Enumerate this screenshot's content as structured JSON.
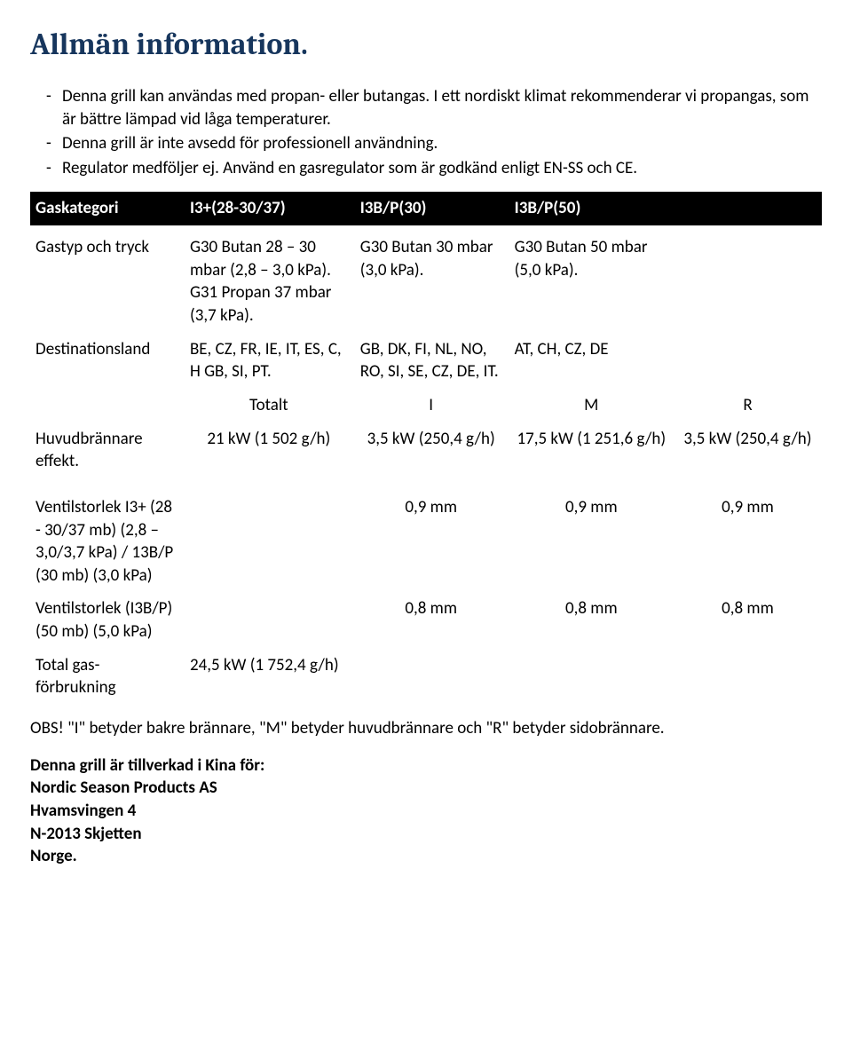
{
  "title": "Allmän information.",
  "bullets": [
    "Denna grill kan användas med propan- eller butangas. I ett nordiskt klimat rekommenderar vi propangas, som är bättre lämpad vid låga temperaturer.",
    "Denna grill är inte avsedd för professionell användning.",
    "Regulator medföljer ej. Använd en gasregulator som är godkänd enligt EN-SS och CE."
  ],
  "header_row": [
    "Gaskategori",
    "I3+(28-30/37)",
    "I3B/P(30)",
    "I3B/P(50)",
    ""
  ],
  "rows": {
    "gastype": {
      "label": "Gastyp och tryck",
      "c1": "G30 Butan 28 – 30 mbar (2,8 – 3,0 kPa).\nG31 Propan 37 mbar (3,7 kPa).",
      "c2": "G30 Butan 30 mbar (3,0 kPa).",
      "c3": "G30 Butan 50 mbar (5,0 kPa).",
      "c4": ""
    },
    "dest": {
      "label": "Destinationsland",
      "c1": "BE, CZ, FR, IE, IT, ES, C, H GB, SI, PT.",
      "c2": "GB, DK, FI, NL, NO, RO, SI, SE, CZ, DE, IT.",
      "c3": "AT, CH, CZ, DE",
      "c4": ""
    },
    "section": {
      "c0": "",
      "c1": "Totalt",
      "c2": "I",
      "c3": "M",
      "c4": "R"
    },
    "power": {
      "label": "Huvudbrännare effekt.",
      "c1": "21 kW (1 502 g/h)",
      "c2": "3,5 kW (250,4 g/h)",
      "c3": "17,5 kW (1 251,6 g/h)",
      "c4": "3,5 kW (250,4 g/h)"
    },
    "valve1": {
      "label": "Ventilstorlek I3+ (28 - 30/37 mb) (2,8 – 3,0/3,7 kPa) / 13B/P (30 mb) (3,0 kPa)",
      "c1": "",
      "c2": "0,9 mm",
      "c3": "0,9 mm",
      "c4": "0,9 mm"
    },
    "valve2": {
      "label": "Ventilstorlek (I3B/P) (50 mb) (5,0 kPa)",
      "c1": "",
      "c2": "0,8 mm",
      "c3": "0,8 mm",
      "c4": "0,8 mm"
    },
    "total": {
      "label": "Total gas-förbrukning",
      "c1": "24,5 kW (1 752,4 g/h)",
      "c2": "",
      "c3": "",
      "c4": ""
    }
  },
  "note": "OBS! \"I\" betyder bakre brännare, \"M\" betyder huvudbrännare och \"R\" betyder sidobrännare.",
  "mfg": {
    "intro": "Denna grill är tillverkad i Kina för:",
    "name": "Nordic Season Products AS",
    "addr1": "Hvamsvingen 4",
    "addr2": "N-2013 Skjetten",
    "country": "Norge."
  }
}
